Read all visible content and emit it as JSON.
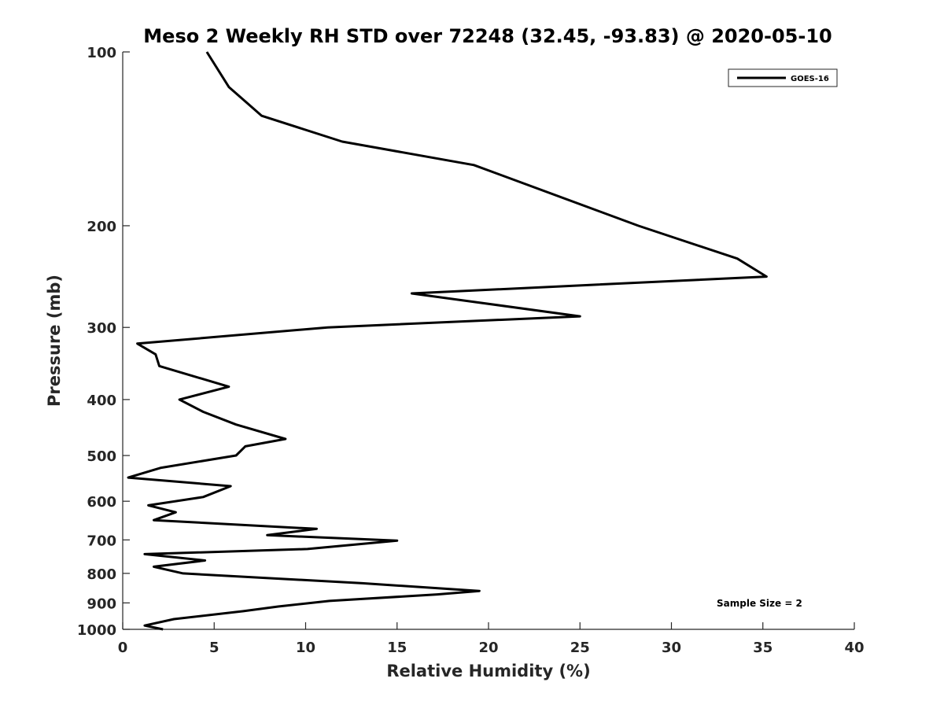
{
  "chart_data": {
    "type": "line",
    "title": "Meso 2 Weekly RH STD over 72248 (32.45, -93.83) @ 2020-05-10",
    "xlabel": "Relative Humidity (%)",
    "ylabel": "Pressure (mb)",
    "xlim": [
      0,
      40
    ],
    "ylim": [
      1000,
      100
    ],
    "y_scale": "log",
    "y_reversed": true,
    "xticks": [
      0,
      5,
      10,
      15,
      20,
      25,
      30,
      35,
      40
    ],
    "yticks": [
      100,
      200,
      300,
      400,
      500,
      600,
      700,
      800,
      900,
      1000
    ],
    "grid": false,
    "legend_position": "top-right",
    "annotation": "Sample Size = 2",
    "series": [
      {
        "name": "GOES-16",
        "color": "#000000",
        "x": [
          4.6,
          5.8,
          7.6,
          12.0,
          19.2,
          28.2,
          33.6,
          35.2,
          15.8,
          25.0,
          11.2,
          0.8,
          1.8,
          2.0,
          5.8,
          3.1,
          4.4,
          6.2,
          8.9,
          6.7,
          6.2,
          2.1,
          0.3,
          5.9,
          4.4,
          1.4,
          2.9,
          1.7,
          10.6,
          7.9,
          15.0,
          10.1,
          1.2,
          4.5,
          1.7,
          3.3,
          13.1,
          19.5,
          17.2,
          11.3,
          8.5,
          6.6,
          2.8,
          1.2,
          2.2
        ],
        "y": [
          100,
          115,
          129,
          143,
          157,
          200,
          228,
          245,
          262,
          287,
          300,
          320,
          334,
          350,
          380,
          400,
          420,
          442,
          468,
          482,
          500,
          525,
          546,
          565,
          590,
          610,
          627,
          647,
          670,
          687,
          702,
          726,
          741,
          760,
          779,
          800,
          832,
          858,
          870,
          893,
          913,
          930,
          960,
          985,
          1000
        ]
      }
    ]
  }
}
